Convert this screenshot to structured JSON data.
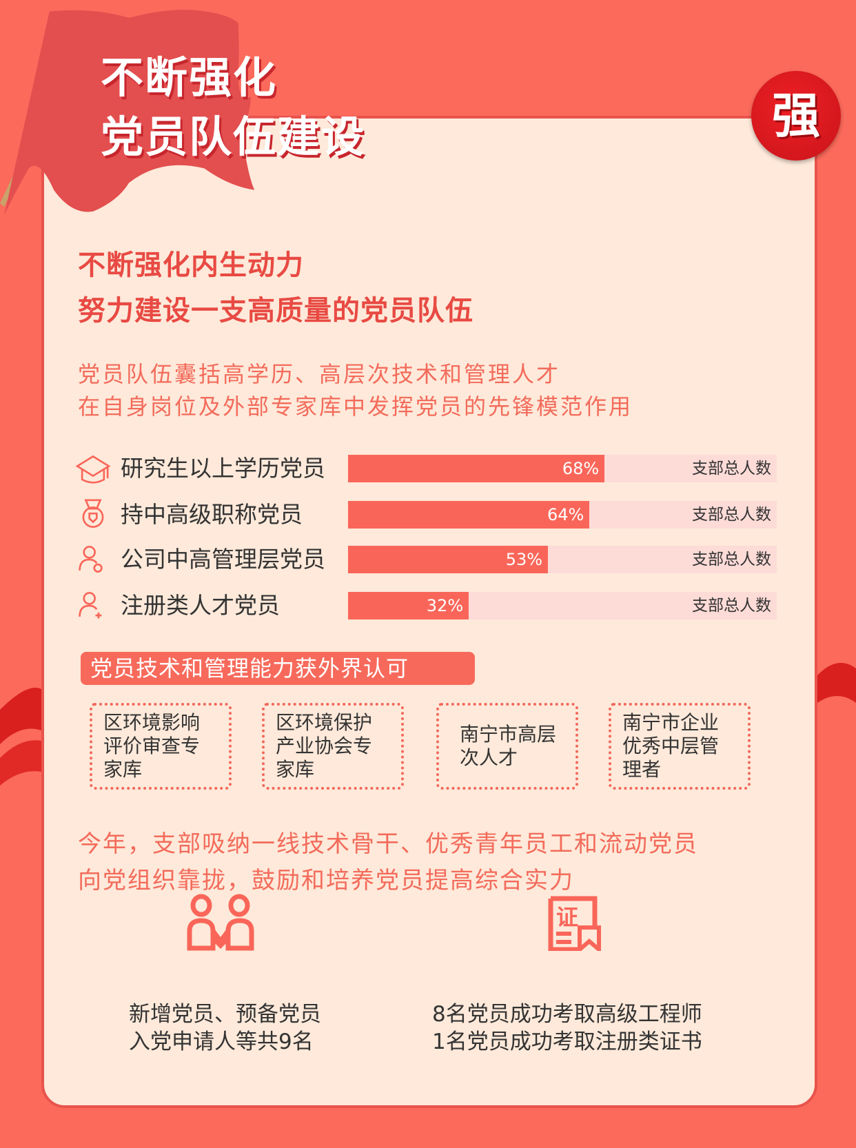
{
  "header": {
    "title_line1": "不断强化",
    "title_line2": "党员队伍建设",
    "badge": "强"
  },
  "intro": {
    "heading_line1": "不断强化内生动力",
    "heading_line2": "努力建设一支高质量的党员队伍",
    "text_line1": "党员队伍囊括高学历、高层次技术和管理人才",
    "text_line2": "在自身岗位及外部专家库中发挥党员的先锋模范作用"
  },
  "stats": [
    {
      "icon": "graduation-cap-icon",
      "label": "研究生以上学历党员",
      "value": 68,
      "value_label": "68%",
      "total_label": "支部总人数"
    },
    {
      "icon": "medal-icon",
      "label": "持中高级职称党员",
      "value": 64,
      "value_label": "64%",
      "total_label": "支部总人数"
    },
    {
      "icon": "manager-user-icon",
      "label": "公司中高管理层党员",
      "value": 53,
      "value_label": "53%",
      "total_label": "支部总人数"
    },
    {
      "icon": "add-user-icon",
      "label": "注册类人才党员",
      "value": 32,
      "value_label": "32%",
      "total_label": "支部总人数"
    }
  ],
  "colors": {
    "accent": "#f96659",
    "track": "#fddbd7",
    "background": "#fb6a5b",
    "card": "#fee9da",
    "badge": "#e31e24"
  },
  "recognition": {
    "title": "党员技术和管理能力获外界认可",
    "items": [
      "区环境影响评价审查专家库",
      "区环境保护产业协会专家库",
      "南宁市高层次人才",
      "南宁市企业优秀中层管理者"
    ]
  },
  "summary": {
    "line1": "今年，支部吸纳一线技术骨干、优秀青年员工和流动党员",
    "line2": "向党组织靠拢，鼓励和培养党员提高综合实力"
  },
  "achievements": [
    {
      "icon": "two-people-icon",
      "line1": "新增党员、预备党员",
      "line2": "入党申请人等共9名"
    },
    {
      "icon": "certificate-icon",
      "icon_text": "证",
      "line1": "8名党员成功考取高级工程师",
      "line2": "1名党员成功考取注册类证书"
    }
  ]
}
